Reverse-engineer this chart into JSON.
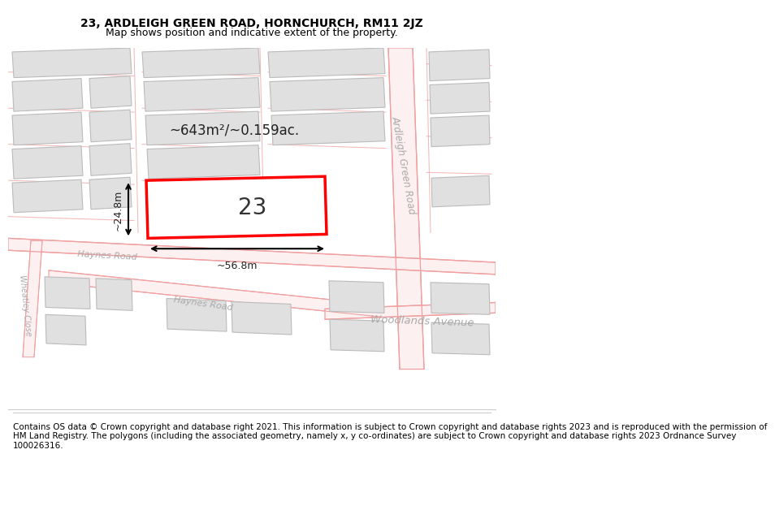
{
  "title": "23, ARDLEIGH GREEN ROAD, HORNCHURCH, RM11 2JZ",
  "subtitle": "Map shows position and indicative extent of the property.",
  "footer": "Contains OS data © Crown copyright and database right 2021. This information is subject to Crown copyright and database rights 2023 and is reproduced with the permission of\nHM Land Registry. The polygons (including the associated geometry, namely x, y co-ordinates) are subject to Crown copyright and database rights 2023 Ordnance Survey\n100026316.",
  "bg_color": "#ffffff",
  "map_bg": "#f2f2f2",
  "building_fill": "#e0e0e0",
  "building_edge": "#bbbbbb",
  "road_color": "#f0a0a0",
  "road_fill": "#fdf0f0",
  "highlight_color": "#ff0000",
  "label_23": "23",
  "area_label": "~643m²/~0.159ac.",
  "width_label": "~56.8m",
  "height_label": "~24.8m",
  "road_label_agr": "Ardleigh Green Road",
  "road_label_hr1": "Haynes Road",
  "road_label_hr2": "Haynes Road",
  "road_label_wa": "Woodlands Avenue",
  "road_label_wc": "Wheatley Close",
  "title_fontsize": 10,
  "subtitle_fontsize": 9,
  "footer_fontsize": 7.5
}
